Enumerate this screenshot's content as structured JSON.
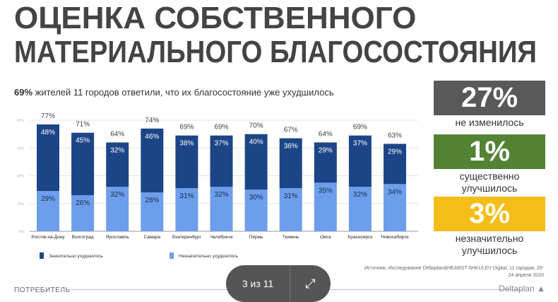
{
  "title_line1": "ОЦЕНКА СОБСТВЕННОГО",
  "title_line2": "МАТЕРИАЛЬНОГО БЛАГОСОСТОЯНИЯ",
  "subtitle_bold": "69%",
  "subtitle_rest": " жителей 11 городов ответили, что их благосостояние уже ухудшилось",
  "summary": [
    {
      "value": "27%",
      "label": "не изменилось",
      "color": "#595959"
    },
    {
      "value": "1%",
      "label": "существенно улучшилось",
      "color": "#538234"
    },
    {
      "value": "3%",
      "label": "незначительно улучшилось",
      "color": "#f5bd18"
    }
  ],
  "source": "Источник: Исследование Deltaplan&HEARST SHKULEV Digital, 11 городов, 20-24 апреля 2020",
  "footer": {
    "section": "ПОТРЕБИТЕЛЬ",
    "brand": "Deltaplan",
    "pager": "3 из 11",
    "expand_icon": "expand-arrows-icon"
  },
  "chart_data": {
    "type": "bar",
    "stacked": true,
    "categories": [
      "Ростов-на-Дону",
      "Волгоград",
      "Ярославль",
      "Самара",
      "Екатеринбург",
      "Челябинск",
      "Пермь",
      "Тюмень",
      "Омск",
      "Красноярск",
      "Новосибирск"
    ],
    "series": [
      {
        "name": "Незначительно ухудшилось",
        "color": "#6d9eeb",
        "values": [
          29,
          26,
          32,
          28,
          31,
          32,
          30,
          31,
          35,
          32,
          34
        ]
      },
      {
        "name": "Значительно ухудшилось",
        "color": "#1c4587",
        "values": [
          48,
          45,
          32,
          46,
          38,
          37,
          40,
          36,
          29,
          37,
          29
        ]
      }
    ],
    "totals": [
      "77%",
      "71%",
      "64%",
      "74%",
      "69%",
      "69%",
      "70%",
      "67%",
      "64%",
      "69%",
      "63%"
    ],
    "yticks": [
      "0%",
      "20%",
      "40%",
      "60%",
      "80%"
    ],
    "ylim": [
      0,
      80
    ],
    "grid": true,
    "legend": "bottom"
  }
}
